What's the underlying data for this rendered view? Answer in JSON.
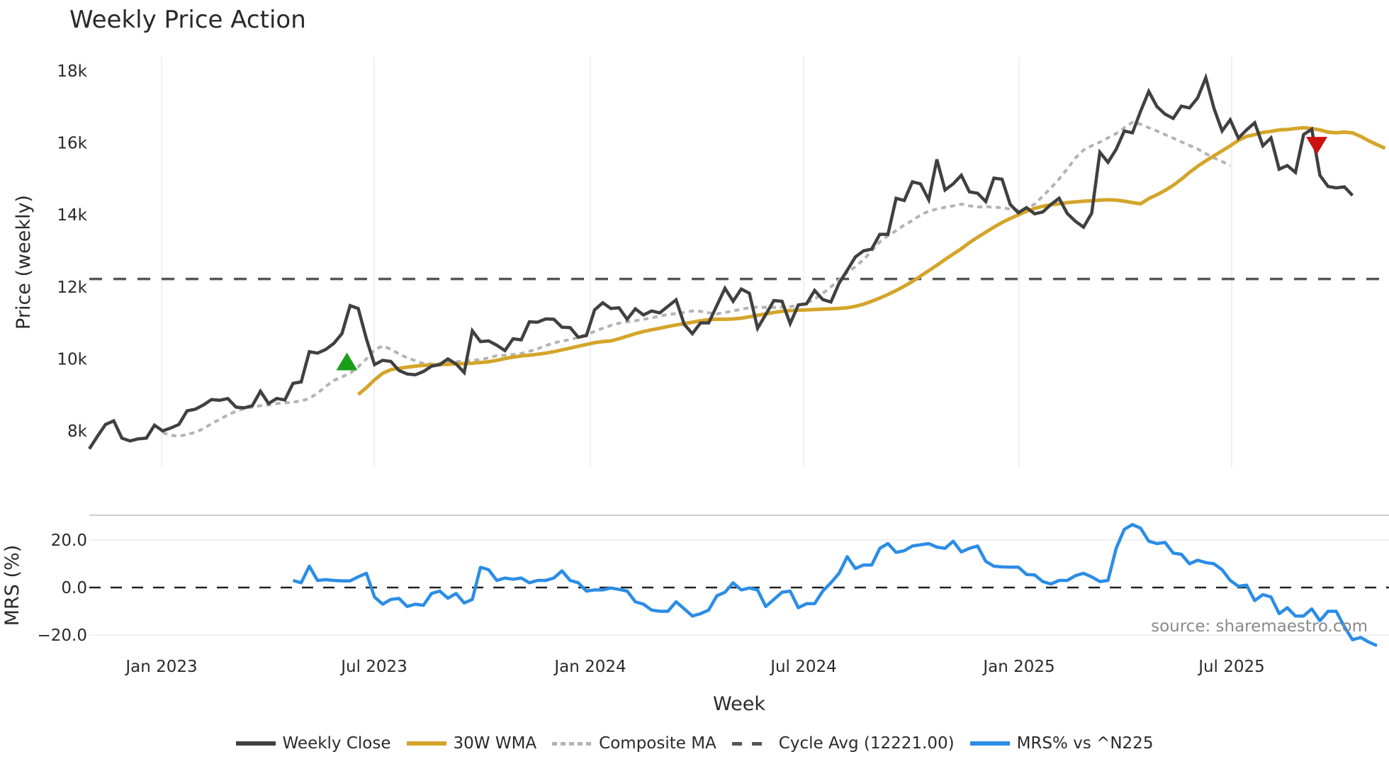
{
  "title": "Weekly Price Action",
  "source_label": "source: sharemaestro.com",
  "colors": {
    "weekly_close": "#404040",
    "wma30": "#d4a52a",
    "composite_ma": "#b3b3b3",
    "cycle_avg": "#555555",
    "mrs": "#2b8de6",
    "buy_marker": "#1a9e1a",
    "sell_marker": "#cc1111",
    "grid": "#eef0f5"
  },
  "legend": [
    {
      "key": "weekly_close",
      "label": "Weekly Close",
      "style": "solid"
    },
    {
      "key": "wma30",
      "label": "30W WMA",
      "style": "solid"
    },
    {
      "key": "composite_ma",
      "label": "Composite MA",
      "style": "dot"
    },
    {
      "key": "cycle_avg",
      "label": "Cycle Avg (12221.00)",
      "style": "dash"
    },
    {
      "key": "mrs",
      "label": "MRS% vs ^N225",
      "style": "solid"
    }
  ],
  "chart_data": [
    {
      "type": "line",
      "title": "Weekly Price Action",
      "xlabel": "Week",
      "ylabel": "Price (weekly)",
      "x_tick_labels": [
        "Jan 2023",
        "Jul 2023",
        "Jan 2024",
        "Jul 2024",
        "Jan 2025",
        "Jul 2025"
      ],
      "y_tick_labels": [
        "8k",
        "10k",
        "12k",
        "14k",
        "16k",
        "18k"
      ],
      "y_ticks": [
        8000,
        10000,
        12000,
        14000,
        16000,
        18000
      ],
      "ylim": [
        7000,
        18500
      ],
      "grid": true,
      "legend_position": "bottom",
      "start_week_index_note": "weekly points from late Nov 2022 to late Oct 2025",
      "series": [
        {
          "name": "Weekly Close",
          "start": 0,
          "values": [
            7500,
            7850,
            8180,
            8280,
            7800,
            7720,
            7780,
            7800,
            8160,
            8000,
            8080,
            8180,
            8560,
            8600,
            8720,
            8870,
            8850,
            8900,
            8660,
            8640,
            8700,
            9100,
            8760,
            8900,
            8860,
            9320,
            9360,
            10200,
            10160,
            10260,
            10430,
            10700,
            11480,
            11400,
            10560,
            9840,
            9960,
            9930,
            9680,
            9580,
            9560,
            9650,
            9800,
            9840,
            10000,
            9860,
            9620,
            10780,
            10480,
            10500,
            10380,
            10230,
            10560,
            10530,
            11030,
            11020,
            11110,
            11100,
            10880,
            10870,
            10600,
            10650,
            11360,
            11560,
            11400,
            11420,
            11100,
            11390,
            11220,
            11330,
            11280,
            11460,
            11640,
            10960,
            10700,
            11000,
            11000,
            11480,
            11960,
            11600,
            11940,
            11820,
            10850,
            11230,
            11620,
            11600,
            10980,
            11500,
            11530,
            11900,
            11650,
            11580,
            12100,
            12460,
            12830,
            13000,
            13050,
            13460,
            13460,
            14460,
            14400,
            14920,
            14860,
            14420,
            15540,
            14690,
            14860,
            15100,
            14640,
            14600,
            14370,
            15020,
            14990,
            14290,
            14060,
            14200,
            14030,
            14080,
            14290,
            14460,
            14040,
            13820,
            13660,
            14050,
            15740,
            15460,
            15820,
            16330,
            16280,
            16880,
            17430,
            17010,
            16800,
            16680,
            17020,
            16970,
            17250,
            17810,
            16960,
            16330,
            16640,
            16130,
            16360,
            16560,
            15920,
            16140,
            15270,
            15370,
            15180,
            16230,
            16380,
            15100,
            14790,
            14750,
            14780,
            14540
          ]
        },
        {
          "name": "30W WMA",
          "start": 33,
          "values": [
            9010,
            9200,
            9420,
            9600,
            9700,
            9740,
            9770,
            9800,
            9820,
            9830,
            9840,
            9850,
            9860,
            9870,
            9880,
            9900,
            9920,
            9960,
            10010,
            10050,
            10080,
            10100,
            10130,
            10160,
            10200,
            10250,
            10300,
            10350,
            10400,
            10450,
            10480,
            10500,
            10560,
            10630,
            10700,
            10760,
            10810,
            10850,
            10900,
            10940,
            10980,
            11020,
            11060,
            11090,
            11100,
            11100,
            11110,
            11130,
            11170,
            11210,
            11250,
            11290,
            11320,
            11340,
            11350,
            11360,
            11370,
            11380,
            11390,
            11400,
            11420,
            11460,
            11520,
            11600,
            11690,
            11790,
            11900,
            12020,
            12150,
            12300,
            12450,
            12600,
            12760,
            12910,
            13060,
            13230,
            13380,
            13520,
            13660,
            13790,
            13900,
            14000,
            14100,
            14180,
            14240,
            14280,
            14310,
            14340,
            14360,
            14380,
            14390,
            14410,
            14420,
            14410,
            14380,
            14340,
            14310,
            14450,
            14560,
            14680,
            14820,
            14990,
            15180,
            15350,
            15500,
            15640,
            15780,
            15920,
            16070,
            16180,
            16230,
            16290,
            16320,
            16360,
            16370,
            16400,
            16420,
            16400,
            16360,
            16300,
            16280,
            16300,
            16280,
            16180,
            16060,
            15950,
            15850
          ]
        },
        {
          "name": "Composite MA",
          "start": 9,
          "values": [
            7950,
            7880,
            7850,
            7900,
            7960,
            8060,
            8200,
            8320,
            8440,
            8550,
            8620,
            8660,
            8700,
            8720,
            8760,
            8780,
            8800,
            8830,
            8900,
            9050,
            9230,
            9400,
            9500,
            9600,
            9780,
            10000,
            10250,
            10360,
            10270,
            10140,
            10030,
            9950,
            9870,
            9860,
            9870,
            9900,
            9920,
            9940,
            9960,
            9980,
            10030,
            10090,
            10100,
            10120,
            10150,
            10210,
            10280,
            10370,
            10440,
            10500,
            10530,
            10600,
            10680,
            10760,
            10850,
            10930,
            10990,
            11030,
            11060,
            11100,
            11140,
            11190,
            11230,
            11260,
            11290,
            11330,
            11320,
            11280,
            11250,
            11290,
            11330,
            11380,
            11420,
            11440,
            11430,
            11430,
            11440,
            11450,
            11490,
            11550,
            11660,
            11820,
            12000,
            12200,
            12400,
            12560,
            12760,
            13000,
            13250,
            13420,
            13560,
            13720,
            13840,
            14000,
            14100,
            14160,
            14210,
            14250,
            14300,
            14250,
            14220,
            14230,
            14210,
            14200,
            14160,
            14130,
            14170,
            14300,
            14520,
            14750,
            15000,
            15280,
            15580,
            15800,
            15920,
            16020,
            16140,
            16260,
            16420,
            16570,
            16520,
            16420,
            16330,
            16230,
            16130,
            16030,
            15930,
            15830,
            15700,
            15580,
            15480,
            15370
          ]
        },
        {
          "name": "Cycle Avg",
          "values": [
            12221
          ]
        }
      ],
      "markers": [
        {
          "type": "buy",
          "shape": "triangle-up",
          "week_index": 31,
          "value": 9900
        },
        {
          "type": "sell",
          "shape": "triangle-down",
          "week_index": 150,
          "value": 15950
        }
      ]
    },
    {
      "type": "line",
      "ylabel": "MRS (%)",
      "y_tick_labels": [
        "20.0",
        "0.0",
        "−20.0"
      ],
      "y_ticks": [
        20,
        0,
        -20
      ],
      "ylim": [
        -25,
        30
      ],
      "reference_line": 0,
      "series": [
        {
          "name": "MRS% vs ^N225",
          "start": 25,
          "values": [
            3,
            2,
            9,
            3,
            3.3,
            3,
            2.8,
            2.8,
            4.5,
            6,
            -4,
            -7,
            -5,
            -4.6,
            -8,
            -7,
            -7.5,
            -2.5,
            -1.5,
            -4.5,
            -2.5,
            -6.5,
            -5,
            8.5,
            7.5,
            3,
            4,
            3.5,
            4,
            2,
            3,
            3,
            4,
            7,
            3,
            2,
            -1.5,
            -1,
            -1,
            -0.2,
            -0.8,
            -1.5,
            -6,
            -7,
            -9.5,
            -10,
            -10,
            -6,
            -9,
            -12,
            -11,
            -9.5,
            -3.5,
            -2,
            2,
            -1,
            -0.2,
            -1,
            -8,
            -5,
            -2,
            -1.5,
            -8.5,
            -6.8,
            -6.8,
            -1.5,
            2,
            6,
            13,
            8,
            9.5,
            9.5,
            16.5,
            18.5,
            14.8,
            15.5,
            17.5,
            18,
            18.5,
            17,
            16.5,
            19.5,
            15,
            16.5,
            17.5,
            11,
            9,
            8.7,
            8.6,
            8.6,
            5.5,
            5.3,
            2.5,
            1.5,
            3,
            3,
            5,
            6,
            4.5,
            2.5,
            3,
            16.5,
            24.5,
            26.5,
            25,
            19.5,
            18.5,
            19,
            14.5,
            14,
            10,
            11.5,
            10.5,
            10,
            7.5,
            3,
            0.5,
            1,
            -5.5,
            -3,
            -4,
            -11,
            -8.5,
            -12,
            -12,
            -9,
            -14,
            -10,
            -10,
            -16.5,
            -22,
            -21,
            -23,
            -24.5
          ]
        }
      ]
    }
  ]
}
